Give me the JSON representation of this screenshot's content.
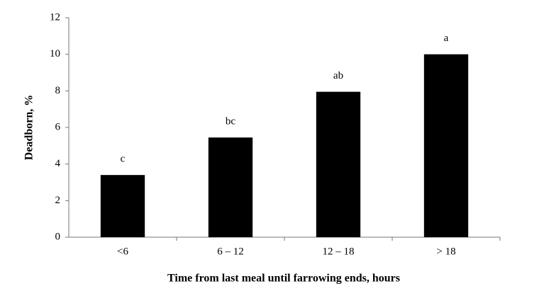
{
  "chart_data": {
    "type": "bar",
    "categories": [
      "<6",
      "6 – 12",
      "12 – 18",
      "> 18"
    ],
    "values": [
      3.4,
      5.45,
      7.95,
      10
    ],
    "annotations": [
      "c",
      "bc",
      "ab",
      "a"
    ],
    "color": "#000000",
    "xlabel": "Time from last meal until farrowing ends, hours",
    "ylabel": "Deadborn, %",
    "ylim": [
      0,
      12
    ],
    "yticks": [
      0,
      2,
      4,
      6,
      8,
      10,
      12
    ],
    "grid": false
  }
}
